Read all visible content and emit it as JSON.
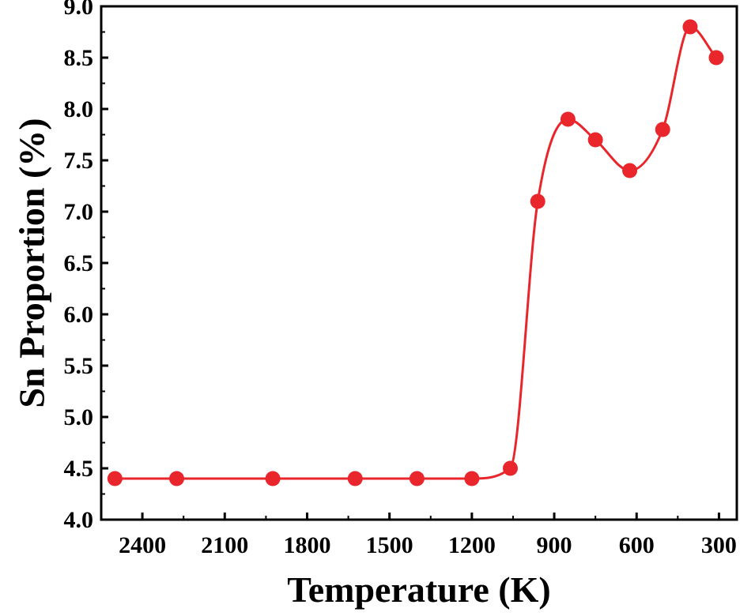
{
  "chart_data": {
    "type": "line",
    "title": "",
    "xlabel": "Temperature (K)",
    "ylabel": "Sn Proportion (%)",
    "x_reversed": true,
    "xlim": [
      2550,
      235
    ],
    "ylim": [
      4.0,
      9.0
    ],
    "x_ticks": [
      2400,
      2100,
      1800,
      1500,
      1200,
      900,
      600,
      300
    ],
    "y_ticks": [
      "4.0",
      "4.5",
      "5.0",
      "5.5",
      "6.0",
      "6.5",
      "7.0",
      "7.5",
      "8.0",
      "8.5",
      "9.0"
    ],
    "grid": false,
    "legend": null,
    "series": [
      {
        "name": "Sn Proportion",
        "color": "#e8262b",
        "marker": "circle",
        "x": [
          2500,
          2275,
          1925,
          1625,
          1400,
          1200,
          1060,
          960,
          850,
          750,
          625,
          505,
          405,
          310
        ],
        "y": [
          4.4,
          4.4,
          4.4,
          4.4,
          4.4,
          4.4,
          4.5,
          7.1,
          7.9,
          7.7,
          7.4,
          7.8,
          8.8,
          8.5
        ]
      }
    ]
  }
}
